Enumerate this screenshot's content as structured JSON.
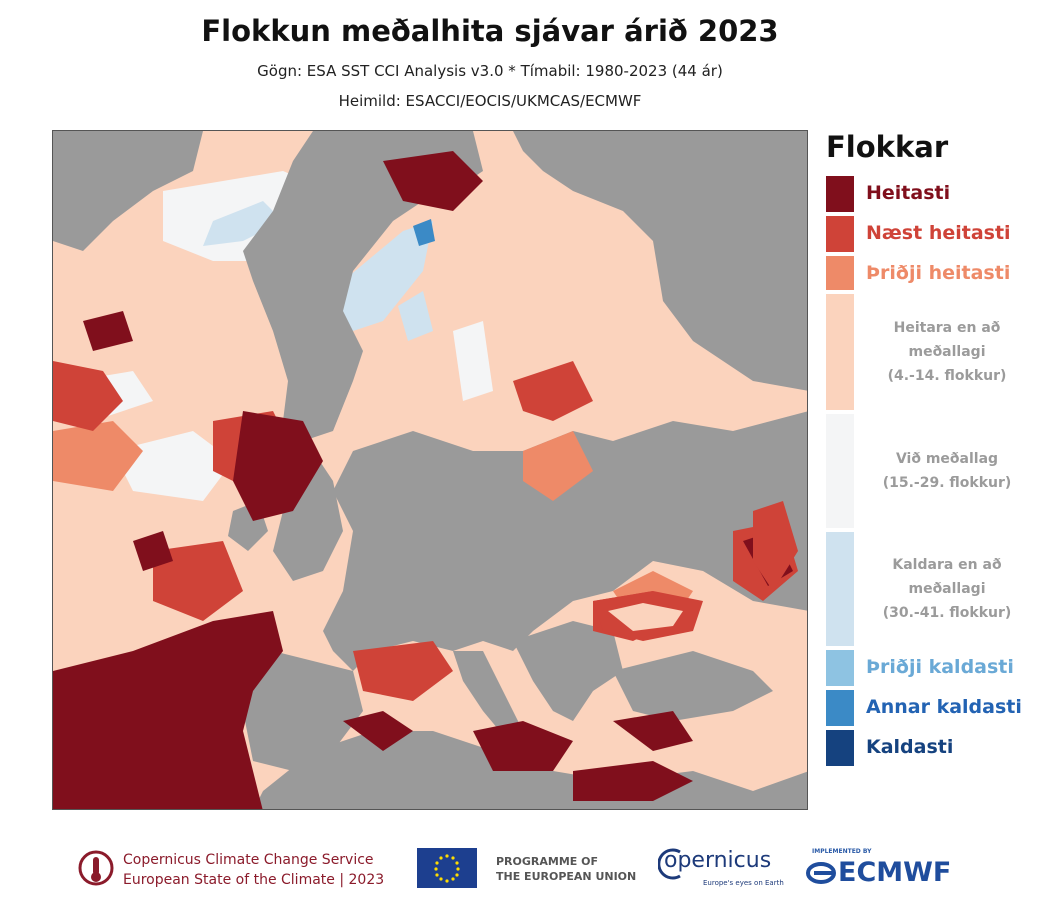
{
  "title": "Flokkun meðalhita sjávar árið 2023",
  "subtitle_line1": "Gögn: ESA SST CCI Analysis v3.0 * Tímabil: 1980-2023 (44 ár)",
  "subtitle_line2": "Heimild: ESACCI/EOCIS/UKMCAS/ECMWF",
  "legend": {
    "title": "Flokkar",
    "items": [
      {
        "label": "Heitasti",
        "color": "#800f1c",
        "text_color": "#800f1c"
      },
      {
        "label": "Næst heitasti",
        "color": "#cf4338",
        "text_color": "#cf4338"
      },
      {
        "label": "Þriðji heitasti",
        "color": "#ee8a68",
        "text_color": "#ee8a68"
      },
      {
        "label_lines": [
          "Heitara en  að",
          "meðallagi",
          "(4.-14. flokkur)"
        ],
        "color": "#fbd3bd"
      },
      {
        "label_lines": [
          "Við meðallag",
          "(15.-29. flokkur)"
        ],
        "color": "#f4f5f6"
      },
      {
        "label_lines": [
          "Kaldara en að",
          "meðallagi",
          "(30.-41. flokkur)"
        ],
        "color": "#cfe2ef"
      },
      {
        "label": "Þriðji kaldasti",
        "color": "#8ec3e2",
        "text_color": "#6aa9d6"
      },
      {
        "label": "Annar kaldasti",
        "color": "#3b8ac6",
        "text_color": "#2363b3"
      },
      {
        "label": "Kaldasti",
        "color": "#15427f",
        "text_color": "#15427f"
      }
    ]
  },
  "map": {
    "land_color": "#9a9a9a",
    "coast_color": "#ffffff"
  },
  "footer": {
    "c3s_line1": "Copernicus Climate Change Service",
    "c3s_line2": "European State of the Climate | 2023",
    "programme_line1": "PROGRAMME OF",
    "programme_line2": "THE EUROPEAN UNION",
    "copernicus": "opernicus",
    "copernicus_tagline": "Europe's eyes on Earth",
    "implemented_by": "IMPLEMENTED BY",
    "ecmwf": "ECMWF"
  }
}
